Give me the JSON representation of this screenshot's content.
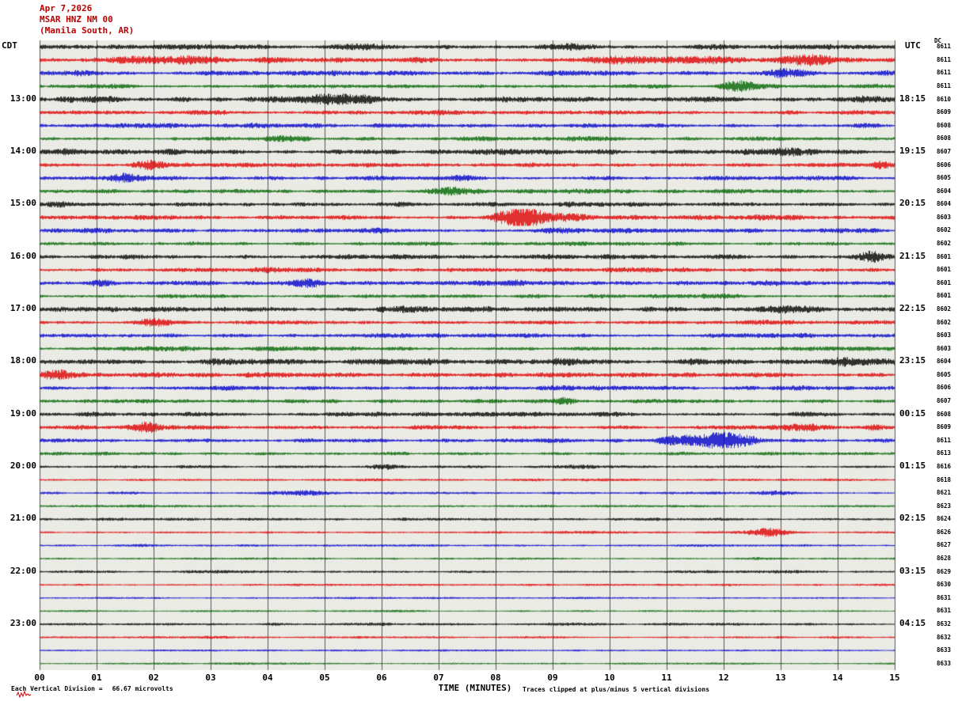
{
  "header": {
    "date": "Apr 7,2026",
    "station": "MSAR HNZ NM 00",
    "location": "(Manila South, AR)"
  },
  "axes": {
    "left_tz": "CDT",
    "right_tz": "UTC",
    "dc_header": "DC",
    "x_ticks": [
      "00",
      "01",
      "02",
      "03",
      "04",
      "05",
      "06",
      "07",
      "08",
      "09",
      "10",
      "11",
      "12",
      "13",
      "14",
      "15"
    ]
  },
  "footer": {
    "scale_prefix": "Each Vertical Division =",
    "scale_value": "66.67 microvolts",
    "clip_note": "Traces clipped at plus/minus 5 vertical divisions"
  },
  "chart_data": {
    "type": "line",
    "title": "MSAR HNZ NM 00 (Manila South, AR) helicorder - Apr 7,2026",
    "xlabel": "TIME (MINUTES)",
    "x_range_minutes": [
      0,
      15
    ],
    "minutes_per_line": 15,
    "lines_per_hour": 4,
    "timezone_left": "CDT",
    "timezone_right": "UTC",
    "division_microvolts": 66.67,
    "clip_divisions": 5,
    "grid": true,
    "plot_bg": "#ebebe6",
    "grid_color": "#555555",
    "trace_colors": [
      "#000000",
      "#dd0000",
      "#0000cc",
      "#006600"
    ],
    "rows": [
      {
        "c": 0,
        "amp": 1.7,
        "dc": 8611,
        "left": "",
        "right": "",
        "ev": [
          [
            5.6,
            2.5,
            0.5
          ],
          [
            9.3,
            2,
            0.4
          ],
          [
            11.9,
            1.8,
            0.4
          ]
        ]
      },
      {
        "c": 1,
        "amp": 2.0,
        "dc": 8611,
        "left": "",
        "right": "",
        "ev": [
          [
            1.8,
            3,
            0.8
          ],
          [
            2.6,
            2.5,
            0.6
          ],
          [
            10.8,
            2.5,
            2.0
          ],
          [
            13.4,
            3.5,
            0.7
          ]
        ]
      },
      {
        "c": 2,
        "amp": 1.7,
        "dc": 8611,
        "left": "",
        "right": "",
        "ev": [
          [
            0.6,
            2,
            0.4
          ],
          [
            13.1,
            4,
            0.5
          ]
        ]
      },
      {
        "c": 3,
        "amp": 1.5,
        "dc": 8611,
        "left": "",
        "right": "",
        "ev": [
          [
            12.2,
            4.5,
            0.4
          ]
        ]
      },
      {
        "c": 0,
        "amp": 2.0,
        "dc": 8610,
        "left": "13:00",
        "right": "18:15",
        "ev": [
          [
            4.9,
            3.5,
            0.9
          ],
          [
            5.6,
            2.5,
            0.6
          ],
          [
            14.5,
            2.5,
            0.4
          ]
        ]
      },
      {
        "c": 1,
        "amp": 1.6,
        "dc": 8609,
        "left": "",
        "right": "",
        "ev": [
          [
            7.0,
            1.5,
            0.5
          ]
        ]
      },
      {
        "c": 2,
        "amp": 1.6,
        "dc": 8608,
        "left": "",
        "right": "",
        "ev": []
      },
      {
        "c": 3,
        "amp": 1.5,
        "dc": 8608,
        "left": "",
        "right": "",
        "ev": [
          [
            4.3,
            2,
            0.5
          ]
        ]
      },
      {
        "c": 0,
        "amp": 1.8,
        "dc": 8607,
        "left": "14:00",
        "right": "19:15",
        "ev": [
          [
            13.2,
            2.5,
            0.6
          ]
        ]
      },
      {
        "c": 1,
        "amp": 1.6,
        "dc": 8606,
        "left": "",
        "right": "",
        "ev": [
          [
            1.9,
            3.5,
            0.3
          ],
          [
            14.8,
            2.5,
            0.3
          ]
        ]
      },
      {
        "c": 2,
        "amp": 1.7,
        "dc": 8605,
        "left": "",
        "right": "",
        "ev": [
          [
            1.5,
            2.5,
            0.5
          ],
          [
            7.4,
            1.5,
            0.4
          ]
        ]
      },
      {
        "c": 3,
        "amp": 1.5,
        "dc": 8604,
        "left": "",
        "right": "",
        "ev": [
          [
            7.2,
            3,
            0.5
          ]
        ]
      },
      {
        "c": 0,
        "amp": 1.7,
        "dc": 8604,
        "left": "15:00",
        "right": "20:15",
        "ev": [
          [
            0.3,
            2,
            0.3
          ]
        ]
      },
      {
        "c": 1,
        "amp": 1.8,
        "dc": 8603,
        "left": "",
        "right": "",
        "ev": [
          [
            8.0,
            2,
            0.3
          ],
          [
            8.45,
            12,
            0.45
          ],
          [
            9.1,
            3,
            0.8
          ]
        ]
      },
      {
        "c": 2,
        "amp": 1.5,
        "dc": 8602,
        "left": "",
        "right": "",
        "ev": [
          [
            9.0,
            1.5,
            0.6
          ]
        ]
      },
      {
        "c": 3,
        "amp": 1.4,
        "dc": 8602,
        "left": "",
        "right": "",
        "ev": []
      },
      {
        "c": 0,
        "amp": 1.8,
        "dc": 8601,
        "left": "16:00",
        "right": "21:15",
        "ev": [
          [
            14.6,
            5,
            0.25
          ]
        ]
      },
      {
        "c": 1,
        "amp": 1.6,
        "dc": 8601,
        "left": "",
        "right": "",
        "ev": []
      },
      {
        "c": 2,
        "amp": 1.7,
        "dc": 8601,
        "left": "",
        "right": "",
        "ev": [
          [
            1.1,
            2.5,
            0.4
          ],
          [
            4.7,
            2.5,
            0.35
          ]
        ]
      },
      {
        "c": 3,
        "amp": 1.5,
        "dc": 8601,
        "left": "",
        "right": "",
        "ev": []
      },
      {
        "c": 0,
        "amp": 1.9,
        "dc": 8602,
        "left": "17:00",
        "right": "22:15",
        "ev": [
          [
            6.4,
            2,
            0.5
          ],
          [
            13.2,
            2.5,
            0.8
          ]
        ]
      },
      {
        "c": 1,
        "amp": 1.6,
        "dc": 8602,
        "left": "",
        "right": "",
        "ev": [
          [
            2.0,
            3.5,
            0.4
          ]
        ]
      },
      {
        "c": 2,
        "amp": 1.5,
        "dc": 8603,
        "left": "",
        "right": "",
        "ev": []
      },
      {
        "c": 3,
        "amp": 1.4,
        "dc": 8603,
        "left": "",
        "right": "",
        "ev": []
      },
      {
        "c": 0,
        "amp": 2.1,
        "dc": 8604,
        "left": "18:00",
        "right": "23:15",
        "ev": [
          [
            9.2,
            2,
            0.4
          ],
          [
            14.2,
            2.5,
            0.5
          ]
        ]
      },
      {
        "c": 1,
        "amp": 1.8,
        "dc": 8605,
        "left": "",
        "right": "",
        "ev": [
          [
            0.3,
            3,
            0.5
          ]
        ]
      },
      {
        "c": 2,
        "amp": 1.5,
        "dc": 8606,
        "left": "",
        "right": "",
        "ev": [
          [
            9.1,
            2,
            0.4
          ]
        ]
      },
      {
        "c": 3,
        "amp": 1.4,
        "dc": 8607,
        "left": "",
        "right": "",
        "ev": [
          [
            9.2,
            2.5,
            0.35
          ]
        ]
      },
      {
        "c": 0,
        "amp": 1.6,
        "dc": 8608,
        "left": "19:00",
        "right": "00:15",
        "ev": []
      },
      {
        "c": 1,
        "amp": 1.5,
        "dc": 8609,
        "left": "",
        "right": "",
        "ev": [
          [
            1.9,
            4,
            0.3
          ],
          [
            13.4,
            3,
            0.7
          ],
          [
            14.6,
            2,
            0.3
          ]
        ]
      },
      {
        "c": 2,
        "amp": 1.5,
        "dc": 8611,
        "left": "",
        "right": "",
        "ev": [
          [
            11.2,
            3,
            0.6
          ],
          [
            11.9,
            6,
            0.7
          ],
          [
            12.3,
            3,
            0.5
          ]
        ]
      },
      {
        "c": 3,
        "amp": 1.2,
        "dc": 8613,
        "left": "",
        "right": "",
        "ev": []
      },
      {
        "c": 0,
        "amp": 1.0,
        "dc": 8616,
        "left": "20:00",
        "right": "01:15",
        "ev": [
          [
            6.0,
            1.5,
            0.4
          ]
        ]
      },
      {
        "c": 1,
        "amp": 0.8,
        "dc": 8618,
        "left": "",
        "right": "",
        "ev": []
      },
      {
        "c": 2,
        "amp": 0.9,
        "dc": 8621,
        "left": "",
        "right": "",
        "ev": [
          [
            4.6,
            1.8,
            0.6
          ],
          [
            12.9,
            1.5,
            0.4
          ]
        ]
      },
      {
        "c": 3,
        "amp": 0.8,
        "dc": 8623,
        "left": "",
        "right": "",
        "ev": []
      },
      {
        "c": 0,
        "amp": 1.0,
        "dc": 8624,
        "left": "21:00",
        "right": "02:15",
        "ev": []
      },
      {
        "c": 1,
        "amp": 0.8,
        "dc": 8626,
        "left": "",
        "right": "",
        "ev": [
          [
            12.8,
            4,
            0.5
          ]
        ]
      },
      {
        "c": 2,
        "amp": 0.7,
        "dc": 8627,
        "left": "",
        "right": "",
        "ev": []
      },
      {
        "c": 3,
        "amp": 0.7,
        "dc": 8628,
        "left": "",
        "right": "",
        "ev": []
      },
      {
        "c": 0,
        "amp": 0.9,
        "dc": 8629,
        "left": "22:00",
        "right": "03:15",
        "ev": []
      },
      {
        "c": 1,
        "amp": 0.7,
        "dc": 8630,
        "left": "",
        "right": "",
        "ev": []
      },
      {
        "c": 2,
        "amp": 0.6,
        "dc": 8631,
        "left": "",
        "right": "",
        "ev": []
      },
      {
        "c": 3,
        "amp": 0.6,
        "dc": 8631,
        "left": "",
        "right": "",
        "ev": []
      },
      {
        "c": 0,
        "amp": 0.9,
        "dc": 8632,
        "left": "23:00",
        "right": "04:15",
        "ev": []
      },
      {
        "c": 1,
        "amp": 0.7,
        "dc": 8632,
        "left": "",
        "right": "",
        "ev": []
      },
      {
        "c": 2,
        "amp": 0.6,
        "dc": 8633,
        "left": "",
        "right": "",
        "ev": []
      },
      {
        "c": 3,
        "amp": 0.6,
        "dc": 8633,
        "left": "",
        "right": "",
        "ev": []
      }
    ]
  }
}
